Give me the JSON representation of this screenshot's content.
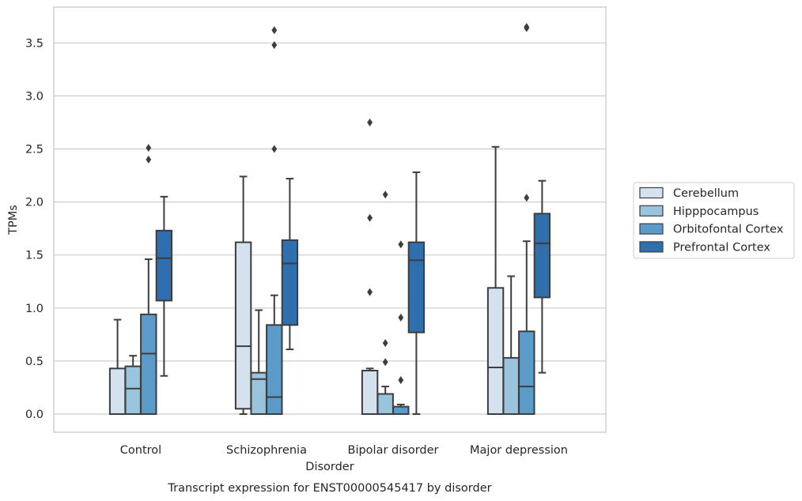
{
  "chart_data": {
    "type": "boxplot",
    "caption": "Transcript expression for ENST00000545417 by disorder",
    "xlabel": "Disorder",
    "ylabel": "TPMs",
    "ylim": [
      -0.17,
      3.82
    ],
    "yticks": [
      0.0,
      0.5,
      1.0,
      1.5,
      2.0,
      2.5,
      3.0,
      3.5
    ],
    "ytick_labels": [
      "0.0",
      "0.5",
      "1.0",
      "1.5",
      "2.0",
      "2.5",
      "3.0",
      "3.5"
    ],
    "grid": "horizontal",
    "legend_position": "right",
    "categories": [
      "Control",
      "Schizophrenia",
      "Bipolar disorder",
      "Major depression"
    ],
    "series": [
      {
        "name": "Cerebellum",
        "color": "#d4e2f0",
        "boxes": [
          {
            "q1": 0.0,
            "median": 0.0,
            "q3": 0.43,
            "whislo": 0.0,
            "whishi": 0.89,
            "fliers": []
          },
          {
            "q1": 0.05,
            "median": 0.64,
            "q3": 1.62,
            "whislo": 0.0,
            "whishi": 2.24,
            "fliers": []
          },
          {
            "q1": 0.0,
            "median": 0.0,
            "q3": 0.41,
            "whislo": 0.0,
            "whishi": 0.43,
            "fliers": [
              1.15,
              1.85,
              2.75
            ]
          },
          {
            "q1": 0.0,
            "median": 0.44,
            "q3": 1.19,
            "whislo": 0.0,
            "whishi": 2.52,
            "fliers": []
          }
        ]
      },
      {
        "name": "Hipppocampus",
        "color": "#9ac4dd",
        "boxes": [
          {
            "q1": 0.0,
            "median": 0.24,
            "q3": 0.45,
            "whislo": 0.0,
            "whishi": 0.55,
            "fliers": []
          },
          {
            "q1": 0.0,
            "median": 0.33,
            "q3": 0.39,
            "whislo": 0.0,
            "whishi": 0.98,
            "fliers": []
          },
          {
            "q1": 0.0,
            "median": 0.0,
            "q3": 0.19,
            "whislo": 0.0,
            "whishi": 0.26,
            "fliers": [
              0.49,
              0.67,
              2.07
            ]
          },
          {
            "q1": 0.0,
            "median": 0.0,
            "q3": 0.53,
            "whislo": 0.0,
            "whishi": 1.3,
            "fliers": []
          }
        ]
      },
      {
        "name": "Orbitofontal Cortex",
        "color": "#5b9bc9",
        "boxes": [
          {
            "q1": 0.0,
            "median": 0.57,
            "q3": 0.94,
            "whislo": 0.0,
            "whishi": 1.46,
            "fliers": [
              2.4,
              2.51
            ]
          },
          {
            "q1": 0.0,
            "median": 0.16,
            "q3": 0.84,
            "whislo": 0.0,
            "whishi": 1.12,
            "fliers": [
              2.5,
              3.48,
              3.62
            ]
          },
          {
            "q1": 0.0,
            "median": 0.0,
            "q3": 0.07,
            "whislo": 0.0,
            "whishi": 0.09,
            "fliers": [
              0.32,
              0.91,
              1.6
            ]
          },
          {
            "q1": 0.0,
            "median": 0.26,
            "q3": 0.78,
            "whislo": 0.0,
            "whishi": 1.63,
            "fliers": [
              2.04,
              3.64,
              3.65
            ]
          }
        ]
      },
      {
        "name": "Prefrontal Cortex",
        "color": "#2f6fad",
        "boxes": [
          {
            "q1": 1.07,
            "median": 1.47,
            "q3": 1.73,
            "whislo": 0.36,
            "whishi": 2.05,
            "fliers": []
          },
          {
            "q1": 0.84,
            "median": 1.42,
            "q3": 1.64,
            "whislo": 0.61,
            "whishi": 2.22,
            "fliers": []
          },
          {
            "q1": 0.77,
            "median": 1.45,
            "q3": 1.62,
            "whislo": 0.0,
            "whishi": 2.28,
            "fliers": []
          },
          {
            "q1": 1.1,
            "median": 1.61,
            "q3": 1.89,
            "whislo": 0.39,
            "whishi": 2.2,
            "fliers": []
          }
        ]
      }
    ]
  }
}
